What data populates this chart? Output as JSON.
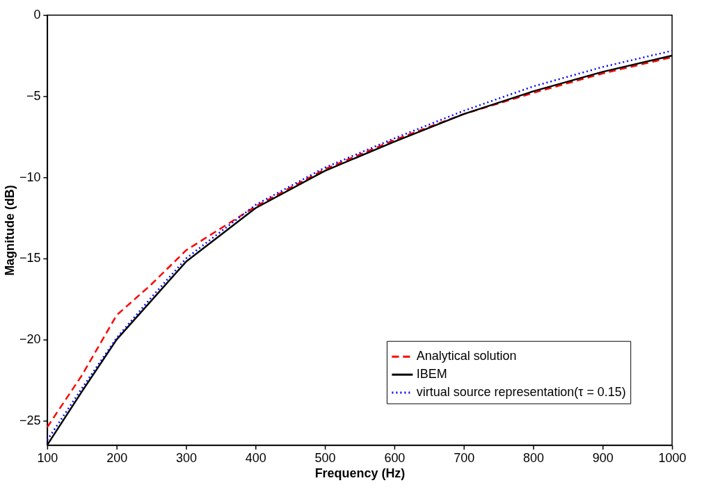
{
  "chart_data": {
    "type": "line",
    "xlabel": "Frequency (Hz)",
    "ylabel": "Magnitude (dB)",
    "xlim": [
      100,
      1000
    ],
    "ylim": [
      -26.5,
      0
    ],
    "xticks": [
      100,
      200,
      300,
      400,
      500,
      600,
      700,
      800,
      900,
      1000
    ],
    "yticks": [
      -25,
      -20,
      -15,
      -10,
      -5,
      0
    ],
    "x": [
      100,
      150,
      200,
      250,
      300,
      400,
      500,
      600,
      700,
      800,
      900,
      1000
    ],
    "grid": false,
    "legend": "bottom right",
    "marker": "none",
    "series": [
      {
        "name": "Analytical solution",
        "color": "#ff0000",
        "line_style": "dashed",
        "values": [
          -25.4,
          -22.2,
          -18.5,
          -16.6,
          -14.5,
          -11.8,
          -9.5,
          -7.7,
          -6.1,
          -4.8,
          -3.6,
          -2.6
        ]
      },
      {
        "name": "IBEM",
        "color": "#000000",
        "line_style": "solid",
        "values": [
          -26.5,
          -23.2,
          -20.0,
          -17.6,
          -15.2,
          -11.9,
          -9.6,
          -7.8,
          -6.1,
          -4.7,
          -3.5,
          -2.5
        ]
      },
      {
        "name": "virtual source representation(τ = 0.15)",
        "color": "#0000ff",
        "line_style": "dotted",
        "values": [
          -26.2,
          -23.0,
          -19.9,
          -17.4,
          -15.0,
          -11.7,
          -9.4,
          -7.6,
          -5.9,
          -4.4,
          -3.2,
          -2.2
        ]
      }
    ]
  }
}
